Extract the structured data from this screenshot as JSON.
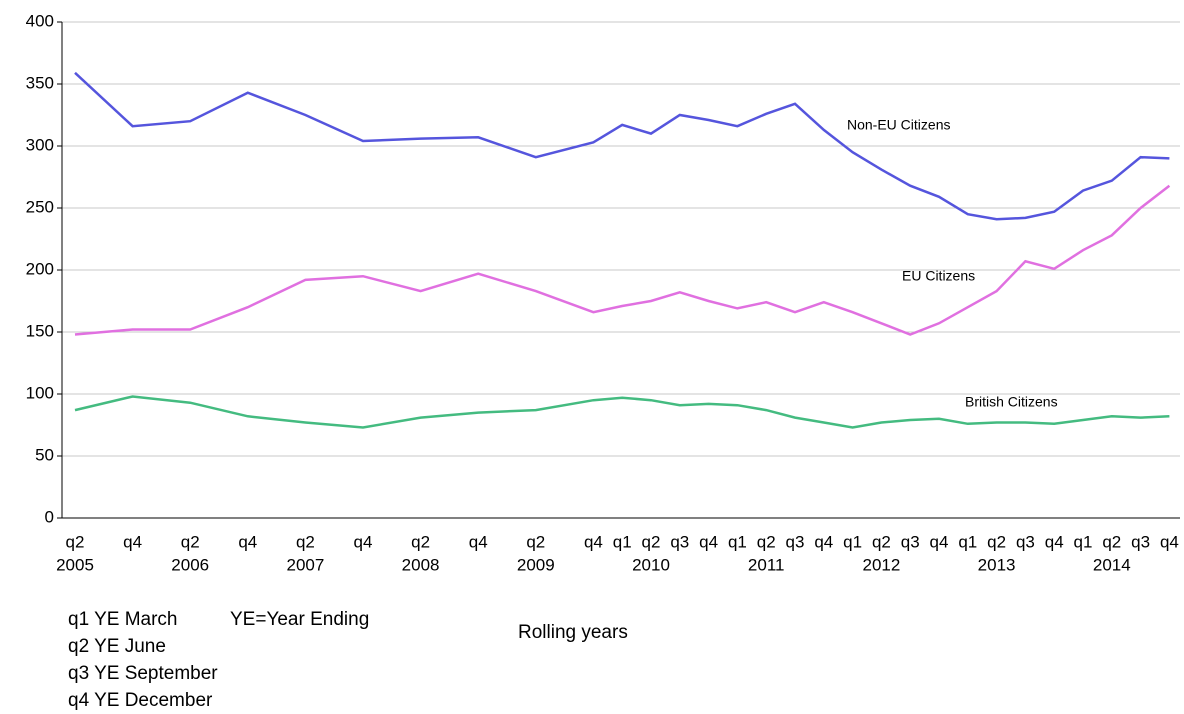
{
  "chart_data": {
    "type": "line",
    "categories": [
      "q2",
      "q4",
      "q2",
      "q4",
      "q2",
      "q4",
      "q2",
      "q4",
      "q2",
      "q4",
      "q1",
      "q2",
      "q3",
      "q4",
      "q1",
      "q2",
      "q3",
      "q4",
      "q1",
      "q2",
      "q3",
      "q4",
      "q1",
      "q2",
      "q3",
      "q4",
      "q1",
      "q2",
      "q3",
      "q4"
    ],
    "years": [
      "2005",
      null,
      "2006",
      null,
      "2007",
      null,
      "2008",
      null,
      "2009",
      null,
      null,
      "2010",
      null,
      null,
      null,
      "2011",
      null,
      null,
      null,
      "2012",
      null,
      null,
      null,
      "2013",
      null,
      null,
      null,
      "2014",
      null,
      null
    ],
    "series": [
      {
        "name": "Non-EU Citizens",
        "color": "#5555dd",
        "values": [
          359,
          316,
          320,
          343,
          325,
          304,
          306,
          307,
          291,
          303,
          317,
          310,
          325,
          321,
          316,
          326,
          334,
          313,
          295,
          281,
          268,
          259,
          245,
          241,
          242,
          247,
          264,
          272,
          291,
          290
        ]
      },
      {
        "name": "EU Citizens",
        "color": "#e070e0",
        "values": [
          148,
          152,
          152,
          170,
          192,
          195,
          183,
          197,
          183,
          166,
          171,
          175,
          182,
          175,
          169,
          174,
          166,
          174,
          166,
          157,
          148,
          157,
          170,
          183,
          207,
          201,
          216,
          228,
          250,
          268
        ]
      },
      {
        "name": "British Citizens",
        "color": "#44bb80",
        "values": [
          87,
          98,
          93,
          82,
          77,
          73,
          81,
          85,
          87,
          95,
          97,
          95,
          91,
          92,
          91,
          87,
          81,
          77,
          73,
          77,
          79,
          80,
          76,
          77,
          77,
          76,
          79,
          82,
          81,
          82
        ]
      }
    ],
    "ylim": [
      0,
      400
    ],
    "yticks": [
      0,
      50,
      100,
      150,
      200,
      250,
      300,
      350,
      400
    ],
    "grid": true,
    "x_label": "Rolling years",
    "notes": [
      "q1 YE March",
      "YE=Year Ending",
      "q2 YE June",
      "q3 YE September",
      "q4 YE December"
    ]
  }
}
